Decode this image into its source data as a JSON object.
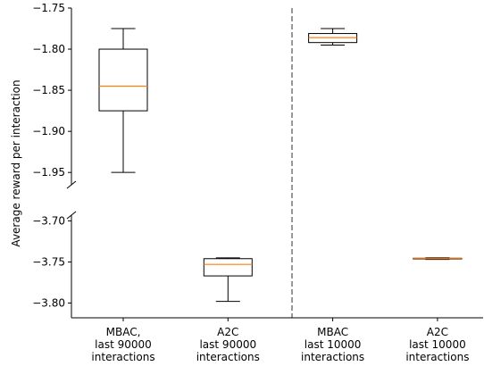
{
  "chart_data": {
    "type": "box",
    "y_label": "Average reward per interaction",
    "categories": [
      [
        "MBAC,",
        "last 90000",
        "interactions"
      ],
      [
        "A2C",
        "last 90000",
        "interactions"
      ],
      [
        "MBAC",
        "last 10000",
        "interactions"
      ],
      [
        "A2C",
        "last 10000",
        "interactions"
      ]
    ],
    "subplots": [
      {
        "ylim": [
          -1.965,
          -1.75
        ],
        "yticks": [
          {
            "value": -1.75,
            "label": "−1.75"
          },
          {
            "value": -1.8,
            "label": "−1.80"
          },
          {
            "value": -1.85,
            "label": "−1.85"
          },
          {
            "value": -1.9,
            "label": "−1.90"
          },
          {
            "value": -1.95,
            "label": "−1.95"
          }
        ]
      },
      {
        "ylim": [
          -3.818,
          -3.693
        ],
        "yticks": [
          {
            "value": -3.7,
            "label": "−3.70"
          },
          {
            "value": -3.75,
            "label": "−3.75"
          },
          {
            "value": -3.8,
            "label": "−3.80"
          }
        ]
      }
    ],
    "boxes": [
      {
        "subplot": 0,
        "whislo": -1.95,
        "q1": -1.875,
        "med": -1.845,
        "q3": -1.8,
        "whishi": -1.775
      },
      {
        "subplot": 1,
        "whislo": -3.798,
        "q1": -3.767,
        "med": -3.753,
        "q3": -3.746,
        "whishi": -3.745
      },
      {
        "subplot": 0,
        "whislo": -1.795,
        "q1": -1.792,
        "med": -1.786,
        "q3": -1.781,
        "whishi": -1.775
      },
      {
        "subplot": 1,
        "whislo": -3.747,
        "q1": -3.7465,
        "med": -3.746,
        "q3": -3.7455,
        "whishi": -3.745
      }
    ],
    "median_color": "#ff7f0e",
    "box_color": "#000000"
  }
}
